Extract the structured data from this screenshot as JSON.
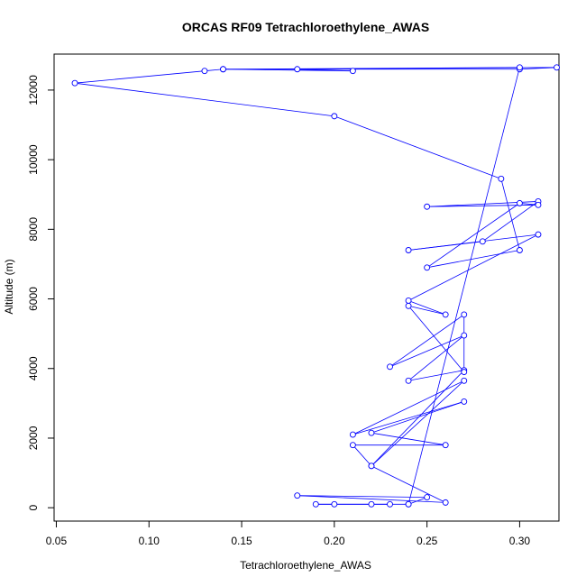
{
  "chart_data": {
    "type": "line",
    "title": "ORCAS RF09 Tetrachloroethylene_AWAS",
    "xlabel": "Tetrachloroethylene_AWAS",
    "ylabel": "Altitude (m)",
    "xlim": [
      0.05,
      0.33
    ],
    "ylim": [
      0,
      13000
    ],
    "x_ticks": [
      0.05,
      0.1,
      0.15,
      0.2,
      0.25,
      0.3
    ],
    "x_tick_labels": [
      "0.05",
      "0.10",
      "0.15",
      "0.20",
      "0.25",
      "0.30"
    ],
    "y_ticks": [
      0,
      2000,
      4000,
      6000,
      8000,
      10000,
      12000
    ],
    "y_tick_labels": [
      "0",
      "2000",
      "4000",
      "6000",
      "8000",
      "10000",
      "12000"
    ],
    "grid": false,
    "line_color": "#0000ff",
    "marker": "open-circle",
    "series": [
      {
        "x": [
          0.23,
          0.22,
          0.19,
          0.2,
          0.24,
          0.25,
          0.18,
          0.26,
          0.22,
          0.21,
          0.26,
          0.22,
          0.27,
          0.21,
          0.27,
          0.22,
          0.27,
          0.24,
          0.27,
          0.23,
          0.27,
          0.27,
          0.24,
          0.26,
          0.24,
          0.31,
          0.24,
          0.28,
          0.31,
          0.25,
          0.31,
          0.3,
          0.25,
          0.3,
          0.29,
          0.2,
          0.06,
          0.13,
          0.14,
          0.3,
          0.32,
          0.18,
          0.21,
          0.14,
          0.3,
          0.24
        ],
        "y": [
          100,
          100,
          100,
          100,
          100,
          300,
          350,
          150,
          1200,
          1800,
          1800,
          2150,
          3050,
          2100,
          3650,
          1200,
          3950,
          3650,
          4950,
          4050,
          5550,
          3900,
          5800,
          5550,
          5950,
          7850,
          7400,
          7650,
          8800,
          8650,
          8700,
          8750,
          6900,
          7400,
          9450,
          11250,
          12200,
          12550,
          12600,
          12600,
          12650,
          12600,
          12550,
          12600,
          12650,
          100
        ]
      }
    ]
  }
}
